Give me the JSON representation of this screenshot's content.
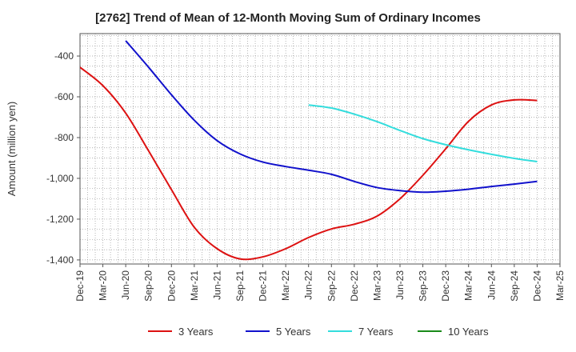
{
  "chart_data": {
    "type": "line",
    "title": "[2762]  Trend of Mean of 12-Month Moving Sum of Ordinary Incomes",
    "xlabel": "",
    "ylabel": "Amount (million yen)",
    "ylim": [
      -1420,
      -290
    ],
    "yticks": [
      -400,
      -600,
      -800,
      -1000,
      -1200,
      -1400
    ],
    "ytick_labels": [
      "-400",
      "-600",
      "-800",
      "-1,000",
      "-1,200",
      "-1,400"
    ],
    "x": [
      "Dec-19",
      "Mar-20",
      "Jun-20",
      "Sep-20",
      "Dec-20",
      "Mar-21",
      "Jun-21",
      "Sep-21",
      "Dec-21",
      "Mar-22",
      "Jun-22",
      "Sep-22",
      "Dec-22",
      "Mar-23",
      "Jun-23",
      "Sep-23",
      "Dec-23",
      "Mar-24",
      "Jun-24",
      "Sep-24",
      "Dec-24",
      "Mar-25"
    ],
    "series": [
      {
        "name": "3 Years",
        "color": "#dd1111",
        "values": [
          -455,
          -545,
          -680,
          -865,
          -1055,
          -1240,
          -1345,
          -1395,
          -1385,
          -1345,
          -1290,
          -1248,
          -1225,
          -1185,
          -1100,
          -985,
          -855,
          -720,
          -640,
          -615,
          -618,
          null
        ]
      },
      {
        "name": "5 Years",
        "color": "#1111cc",
        "values": [
          null,
          null,
          -325,
          -455,
          -590,
          -715,
          -815,
          -880,
          -920,
          -942,
          -960,
          -980,
          -1015,
          -1045,
          -1060,
          -1068,
          -1063,
          -1053,
          -1040,
          -1028,
          -1015,
          null
        ]
      },
      {
        "name": "7 Years",
        "color": "#33dddd",
        "values": [
          null,
          null,
          null,
          null,
          null,
          null,
          null,
          null,
          null,
          null,
          -640,
          -655,
          -685,
          -722,
          -765,
          -805,
          -835,
          -860,
          -882,
          -902,
          -918,
          null
        ]
      },
      {
        "name": "10 Years",
        "color": "#1a8a1a",
        "values": [
          null,
          null,
          null,
          null,
          null,
          null,
          null,
          null,
          null,
          null,
          null,
          null,
          null,
          null,
          null,
          null,
          null,
          null,
          null,
          null,
          null,
          null
        ]
      }
    ],
    "grid": true,
    "legend_position": "bottom"
  }
}
